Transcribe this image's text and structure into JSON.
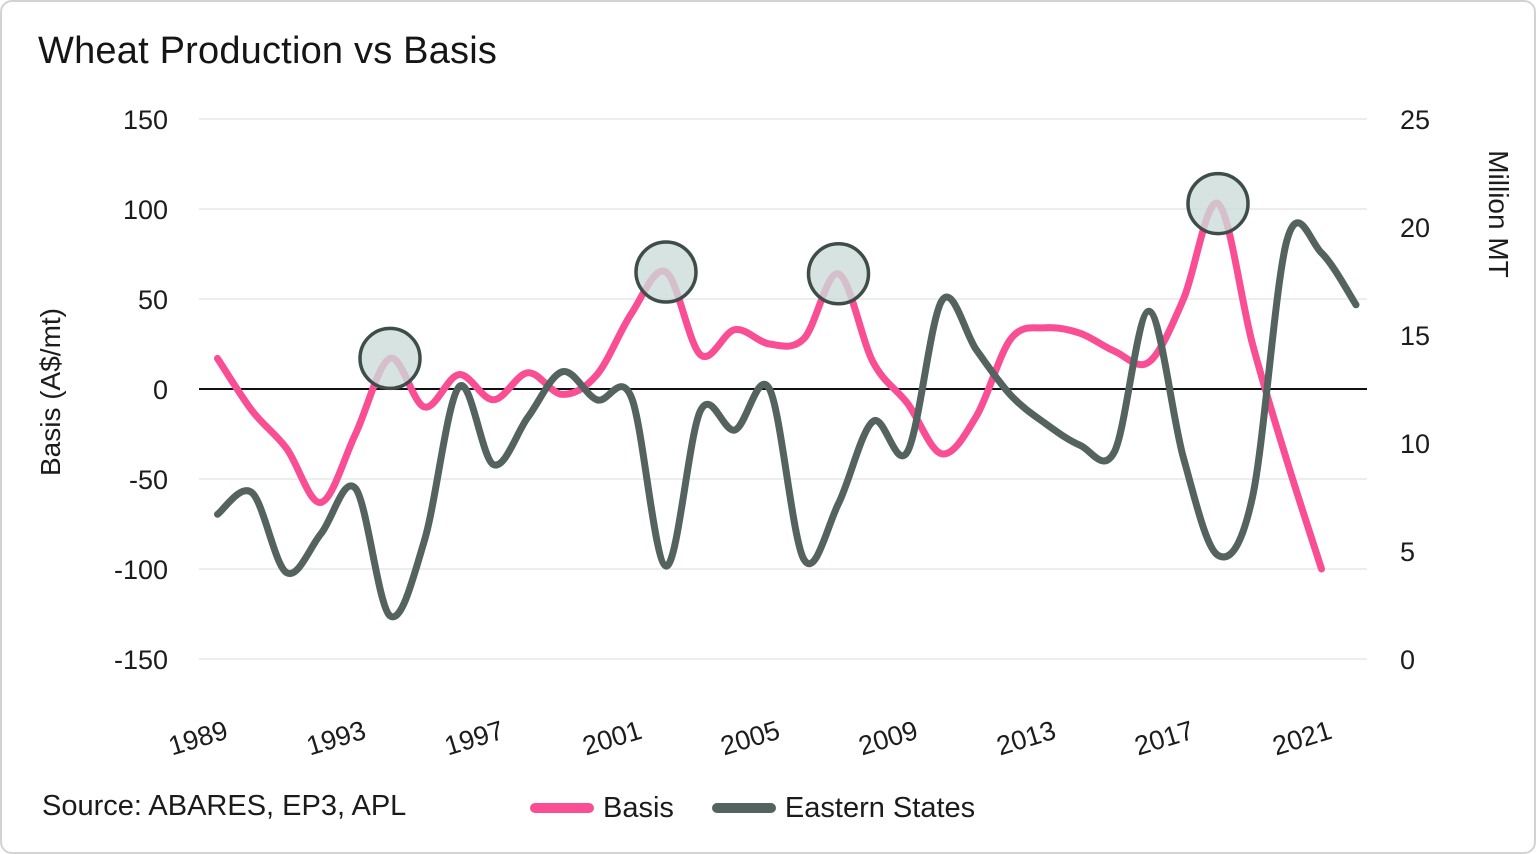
{
  "source": "Source: ABARES, EP3, APL",
  "colors": {
    "basis_line": "#F94E93",
    "eastern_states_line": "#54635F",
    "gridline": "#E7E7E7",
    "zero_line": "#111111",
    "highlight_circle_fill": "#CCDCD8",
    "highlight_circle_stroke": "#3E4D4A",
    "text": "#1C1C1E",
    "card_border": "#D3D3D3",
    "background": "#FFFFFF"
  },
  "chart_data": {
    "type": "line",
    "title": "Wheat Production vs Basis",
    "grid": "horizontal-only",
    "legend_position": "bottom-center",
    "axes": {
      "left": {
        "label": "Basis (A$/mt)",
        "range": [
          -150,
          150
        ],
        "ticks": [
          150,
          100,
          50,
          0,
          -50,
          -100,
          -150
        ]
      },
      "right": {
        "label": "Million MT",
        "range": [
          0,
          25
        ],
        "ticks": [
          25,
          20,
          15,
          10,
          5,
          0
        ]
      },
      "x": {
        "ticks": [
          1989,
          1993,
          1997,
          2001,
          2005,
          2009,
          2013,
          2017,
          2021
        ],
        "tick_rotation_deg": -17
      }
    },
    "series": [
      {
        "name": "Basis",
        "axis": "left",
        "unit": "A$/mt",
        "color": "#F94E93",
        "years": [
          1989,
          1990,
          1991,
          1992,
          1993,
          1994,
          1995,
          1996,
          1997,
          1998,
          1999,
          2000,
          2001,
          2002,
          2003,
          2004,
          2005,
          2006,
          2007,
          2008,
          2009,
          2010,
          2011,
          2012,
          2013,
          2014,
          2015,
          2016,
          2017,
          2018,
          2019,
          2020,
          2021
        ],
        "values": [
          17,
          -12,
          -33,
          -63,
          -25,
          17,
          -10,
          8,
          -6,
          9,
          -3,
          8,
          42,
          65,
          19,
          33,
          25,
          28,
          64,
          15,
          -8,
          -36,
          -15,
          28,
          34,
          31,
          21,
          15,
          50,
          103,
          25,
          -40,
          -100
        ]
      },
      {
        "name": "Eastern States",
        "axis": "right",
        "unit": "Million MT",
        "color": "#54635F",
        "years": [
          1989,
          1990,
          1991,
          1992,
          1993,
          1994,
          1995,
          1996,
          1997,
          1998,
          1999,
          2000,
          2001,
          2002,
          2003,
          2004,
          2005,
          2006,
          2007,
          2008,
          2009,
          2010,
          2011,
          2012,
          2013,
          2014,
          2015,
          2016,
          2017,
          2018,
          2019,
          2020,
          2021,
          2022
        ],
        "values": [
          6.7,
          7.7,
          4.0,
          5.8,
          7.9,
          2.0,
          5.5,
          12.6,
          9.0,
          11.2,
          13.3,
          12.0,
          12.1,
          4.3,
          11.5,
          10.6,
          12.5,
          4.6,
          7.2,
          11.0,
          9.6,
          16.6,
          14.3,
          12.2,
          10.9,
          9.9,
          9.6,
          16.1,
          9.3,
          4.8,
          7.5,
          19.4,
          18.8,
          16.4
        ]
      }
    ],
    "highlighted_peaks": [
      {
        "year": 1994,
        "value": 17
      },
      {
        "year": 2002,
        "value": 65
      },
      {
        "year": 2007,
        "value": 64
      },
      {
        "year": 2018,
        "value": 103
      }
    ]
  }
}
